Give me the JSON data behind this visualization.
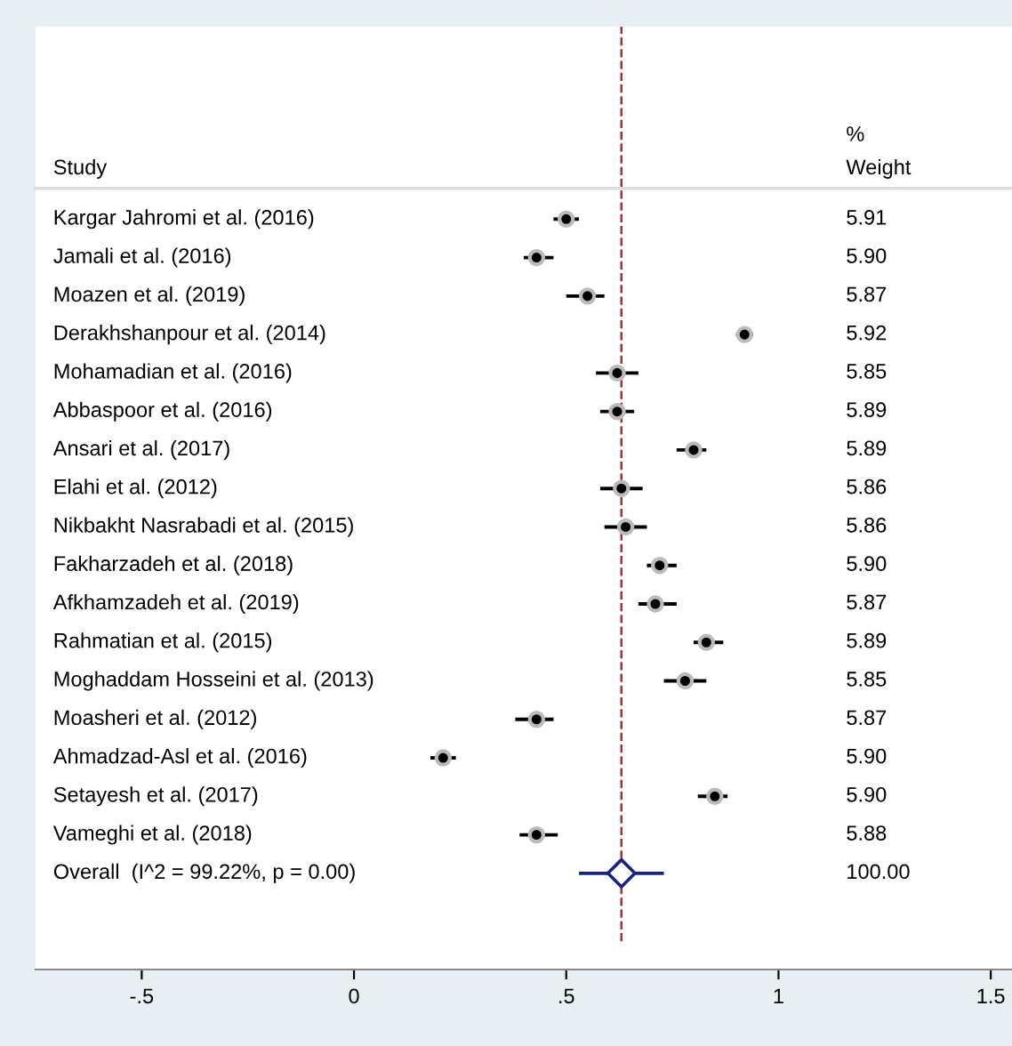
{
  "chart_data": {
    "type": "scatter",
    "orientation": "horizontal",
    "categories": [
      "Kargar Jahromi et al. (2016)",
      "Jamali et al. (2016)",
      "Moazen et al. (2019)",
      "Derakhshanpour et al. (2014)",
      "Mohamadian et al. (2016)",
      "Abbaspoor et al. (2016)",
      "Ansari et al. (2017)",
      "Elahi et al. (2012)",
      "Nikbakht Nasrabadi et al. (2015)",
      "Fakharzadeh et al. (2018)",
      "Afkhamzadeh et al. (2019)",
      "Rahmatian et al. (2015)",
      "Moghaddam Hosseini et al. (2013)",
      "Moasheri et al. (2012)",
      "Ahmadzad-Asl et al. (2016)",
      "Setayesh et al. (2017)",
      "Vameghi et al. (2018)",
      "Overall  (I^2 = 99.22%, p = 0.00)"
    ],
    "series": [
      {
        "color": "#000000",
        "marker": "circle",
        "values": [
          0.5,
          0.43,
          0.55,
          0.92,
          0.62,
          0.62,
          0.8,
          0.63,
          0.64,
          0.72,
          0.71,
          0.83,
          0.78,
          0.43,
          0.21,
          0.85,
          0.43,
          null
        ],
        "errors": [
          [
            0.47,
            0.53
          ],
          [
            0.4,
            0.47
          ],
          [
            0.5,
            0.59
          ],
          [
            0.9,
            0.94
          ],
          [
            0.57,
            0.67
          ],
          [
            0.58,
            0.66
          ],
          [
            0.76,
            0.83
          ],
          [
            0.58,
            0.68
          ],
          [
            0.59,
            0.69
          ],
          [
            0.69,
            0.76
          ],
          [
            0.67,
            0.76
          ],
          [
            0.8,
            0.87
          ],
          [
            0.73,
            0.83
          ],
          [
            0.38,
            0.47
          ],
          [
            0.18,
            0.24
          ],
          [
            0.81,
            0.88
          ],
          [
            0.39,
            0.48
          ],
          null
        ]
      },
      {
        "color": "#1a237e",
        "marker": "diamond",
        "values": [
          null,
          null,
          null,
          null,
          null,
          null,
          null,
          null,
          null,
          null,
          null,
          null,
          null,
          null,
          null,
          null,
          null,
          0.63
        ],
        "errors": [
          null,
          null,
          null,
          null,
          null,
          null,
          null,
          null,
          null,
          null,
          null,
          null,
          null,
          null,
          null,
          null,
          null,
          [
            0.53,
            0.73
          ]
        ]
      }
    ],
    "annotations": [
      "Study",
      "%\nWeight",
      "5.91",
      "5.90",
      "5.87",
      "5.92",
      "5.85",
      "5.89",
      "5.89",
      "5.86",
      "5.86",
      "5.90",
      "5.87",
      "5.89",
      "5.85",
      "5.87",
      "5.90",
      "5.90",
      "5.88",
      "100.00"
    ],
    "ref_lines": [
      {
        "axis": "x",
        "value": 0.63,
        "color": "#a0303a",
        "line_style": "dashed"
      }
    ],
    "xlim": [
      -0.75,
      1.55
    ],
    "xticks": [
      {
        "value": -0.5,
        "label": "-.5"
      },
      0,
      {
        "value": 0.5,
        "label": ".5"
      },
      1,
      1.5
    ],
    "tick_labels": "x",
    "grid": false,
    "legend": false
  }
}
